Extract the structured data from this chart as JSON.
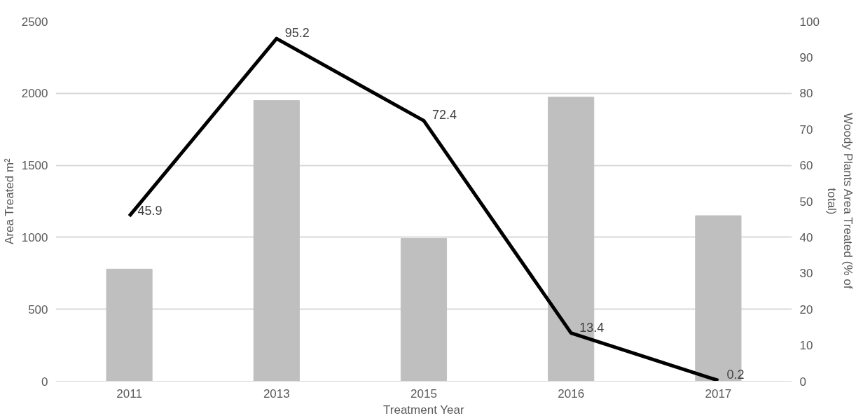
{
  "chart_data": {
    "type": "bar",
    "xlabel": "Treatment Year",
    "ylabel": "Area Treated m²",
    "y2label": "Woody Plants Area Treated (% of total)",
    "categories": [
      "2011",
      "2013",
      "2015",
      "2016",
      "2017"
    ],
    "series": [
      {
        "color": "#bfbfbf",
        "values": [
          779,
          1950,
          992,
          1974,
          1150
        ]
      },
      {
        "type": "line",
        "axis": "y2",
        "color": "#000000",
        "values": [
          45.9,
          95.2,
          72.4,
          13.4,
          0.2
        ],
        "data_labels": true
      }
    ],
    "ylim": [
      0,
      2500
    ],
    "yticks": [
      0,
      500,
      1000,
      1500,
      2000,
      2500
    ],
    "y2lim": [
      0,
      100
    ],
    "y2ticks": [
      0,
      10,
      20,
      30,
      40,
      50,
      60,
      70,
      80,
      90,
      100
    ],
    "grid": "y"
  }
}
